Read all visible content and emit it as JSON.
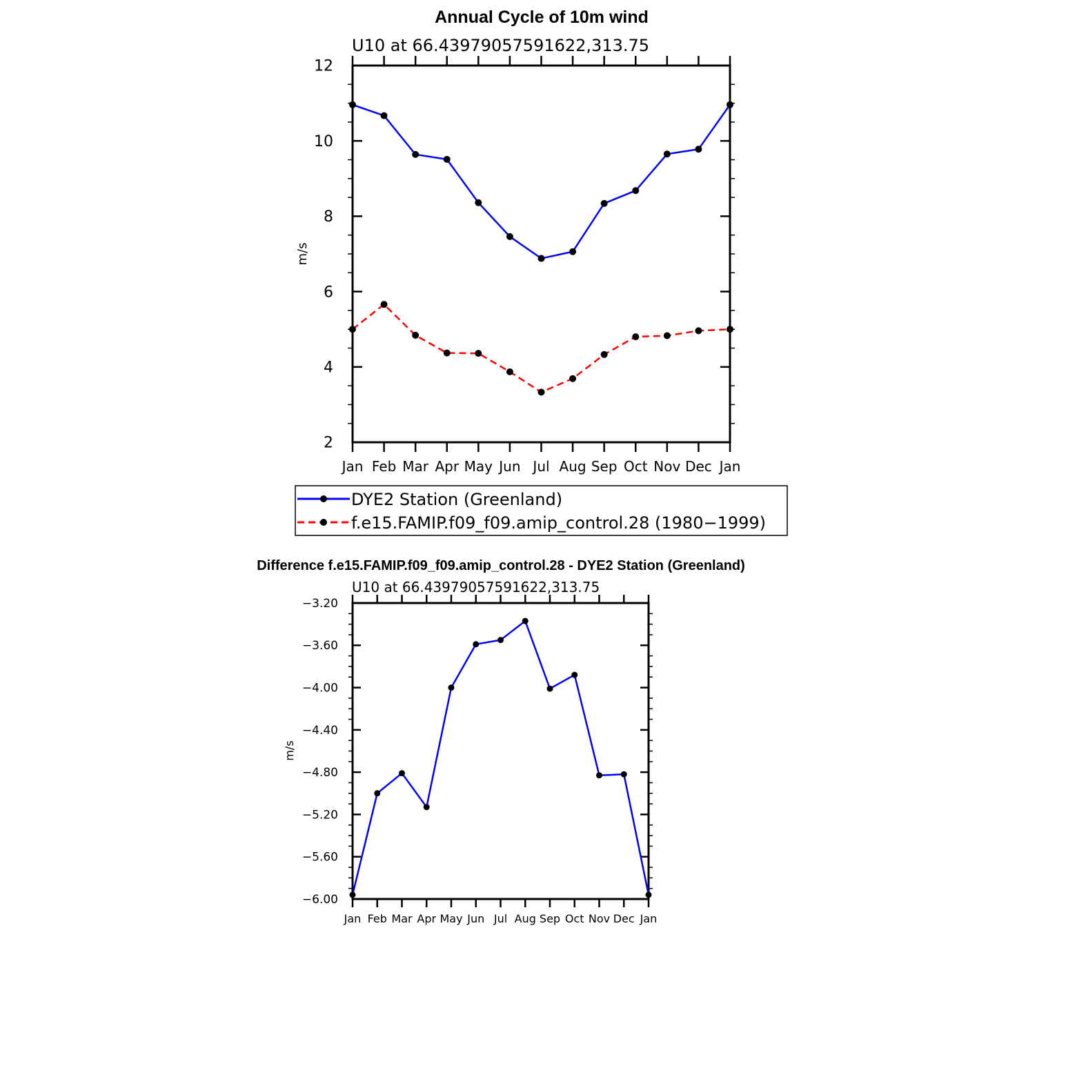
{
  "chart_data": [
    {
      "type": "line",
      "title": "Annual Cycle of 10m wind",
      "subtitle": "U10  at  66.43979057591622,313.75",
      "ylabel": "m/s",
      "xlabel": "",
      "categories": [
        "Jan",
        "Feb",
        "Mar",
        "Apr",
        "May",
        "Jun",
        "Jul",
        "Aug",
        "Sep",
        "Oct",
        "Nov",
        "Dec",
        "Jan"
      ],
      "ylim": [
        2,
        12
      ],
      "yticks": [
        "2",
        "4",
        "6",
        "8",
        "10",
        "12"
      ],
      "grid": false,
      "legend_position": "bottom",
      "series": [
        {
          "name": "DYE2 Station (Greenland)",
          "color": "#0000ff",
          "dash": "solid",
          "values": [
            10.96,
            10.67,
            9.64,
            9.51,
            8.36,
            7.46,
            6.88,
            7.06,
            8.34,
            8.68,
            9.65,
            9.78,
            10.96
          ]
        },
        {
          "name": "f.e15.FAMIP.f09_f09.amip_control.28 (1980−1999)",
          "color": "#ff0000",
          "dash": "dashed",
          "values": [
            5.0,
            5.66,
            4.84,
            4.37,
            4.36,
            3.87,
            3.33,
            3.69,
            4.33,
            4.8,
            4.83,
            4.96,
            5.0
          ]
        }
      ]
    },
    {
      "type": "line",
      "title": "Difference f.e15.FAMIP.f09_f09.amip_control.28 - DYE2 Station (Greenland)",
      "subtitle": "U10  at  66.43979057591622,313.75",
      "ylabel": "m/s",
      "xlabel": "",
      "categories": [
        "Jan",
        "Feb",
        "Mar",
        "Apr",
        "May",
        "Jun",
        "Jul",
        "Aug",
        "Sep",
        "Oct",
        "Nov",
        "Dec",
        "Jan"
      ],
      "ylim": [
        -6.0,
        -3.2
      ],
      "yticks": [
        "−6.00",
        "−5.60",
        "−5.20",
        "−4.80",
        "−4.40",
        "−4.00",
        "−3.60",
        "−3.20"
      ],
      "grid": false,
      "series": [
        {
          "color": "#0000ff",
          "dash": "solid",
          "values": [
            -5.96,
            -5.0,
            -4.81,
            -5.13,
            -4.0,
            -3.59,
            -3.55,
            -3.37,
            -4.01,
            -3.88,
            -4.83,
            -4.82,
            -5.96
          ]
        }
      ]
    }
  ]
}
